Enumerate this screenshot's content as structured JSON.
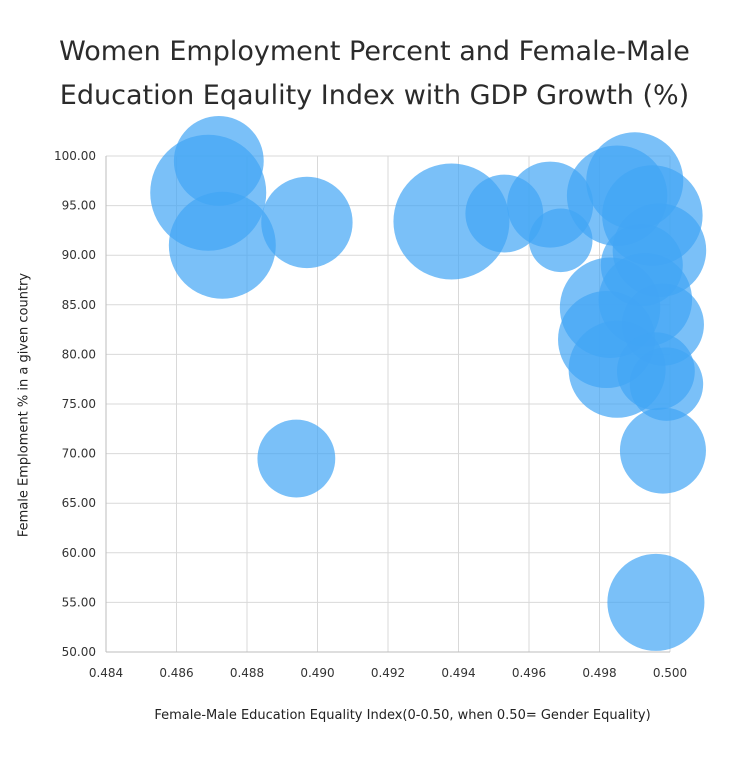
{
  "title_line1": "Women Employment Percent and Female-Male",
  "title_line2": "Education Eqaulity Index with GDP Growth (%)",
  "chart_data": {
    "type": "scatter",
    "title": "Women Employment Percent and Female-Male Education Eqaulity Index with GDP Growth (%)",
    "xlabel": "Female-Male Education Equality Index(0-0.50, when 0.50= Gender Equality)",
    "ylabel": "Female  Emploment % in a given country",
    "xlim": [
      0.484,
      0.5
    ],
    "ylim": [
      50,
      100
    ],
    "x_ticks": [
      "0.484",
      "0.486",
      "0.488",
      "0.490",
      "0.492",
      "0.494",
      "0.496",
      "0.498",
      "0.500"
    ],
    "y_ticks": [
      "100.00",
      "95.00",
      "90.00",
      "85.00",
      "80.00",
      "75.00",
      "70.00",
      "65.00",
      "60.00",
      "55.00",
      "50.00"
    ],
    "grid": true,
    "bubble_color": "#42a5f5",
    "points": [
      {
        "x": 0.4869,
        "y": 96.3,
        "size": 1.0
      },
      {
        "x": 0.4872,
        "y": 99.5,
        "size": 0.6
      },
      {
        "x": 0.4873,
        "y": 91.0,
        "size": 0.85
      },
      {
        "x": 0.4897,
        "y": 93.3,
        "size": 0.62
      },
      {
        "x": 0.4894,
        "y": 69.5,
        "size": 0.45
      },
      {
        "x": 0.4938,
        "y": 93.4,
        "size": 1.0
      },
      {
        "x": 0.4953,
        "y": 94.2,
        "size": 0.45
      },
      {
        "x": 0.4966,
        "y": 95.1,
        "size": 0.55
      },
      {
        "x": 0.4969,
        "y": 91.5,
        "size": 0.3
      },
      {
        "x": 0.4985,
        "y": 96.0,
        "size": 0.75
      },
      {
        "x": 0.499,
        "y": 97.5,
        "size": 0.7
      },
      {
        "x": 0.4995,
        "y": 94.0,
        "size": 0.75
      },
      {
        "x": 0.4992,
        "y": 89.0,
        "size": 0.5
      },
      {
        "x": 0.4997,
        "y": 90.5,
        "size": 0.65
      },
      {
        "x": 0.4983,
        "y": 84.7,
        "size": 0.75
      },
      {
        "x": 0.4993,
        "y": 85.5,
        "size": 0.65
      },
      {
        "x": 0.4998,
        "y": 83.0,
        "size": 0.5
      },
      {
        "x": 0.4982,
        "y": 81.5,
        "size": 0.7
      },
      {
        "x": 0.4985,
        "y": 78.5,
        "size": 0.7
      },
      {
        "x": 0.4996,
        "y": 78.3,
        "size": 0.45
      },
      {
        "x": 0.4999,
        "y": 77.0,
        "size": 0.4
      },
      {
        "x": 0.4998,
        "y": 70.3,
        "size": 0.55
      },
      {
        "x": 0.4996,
        "y": 55.0,
        "size": 0.7
      }
    ]
  }
}
